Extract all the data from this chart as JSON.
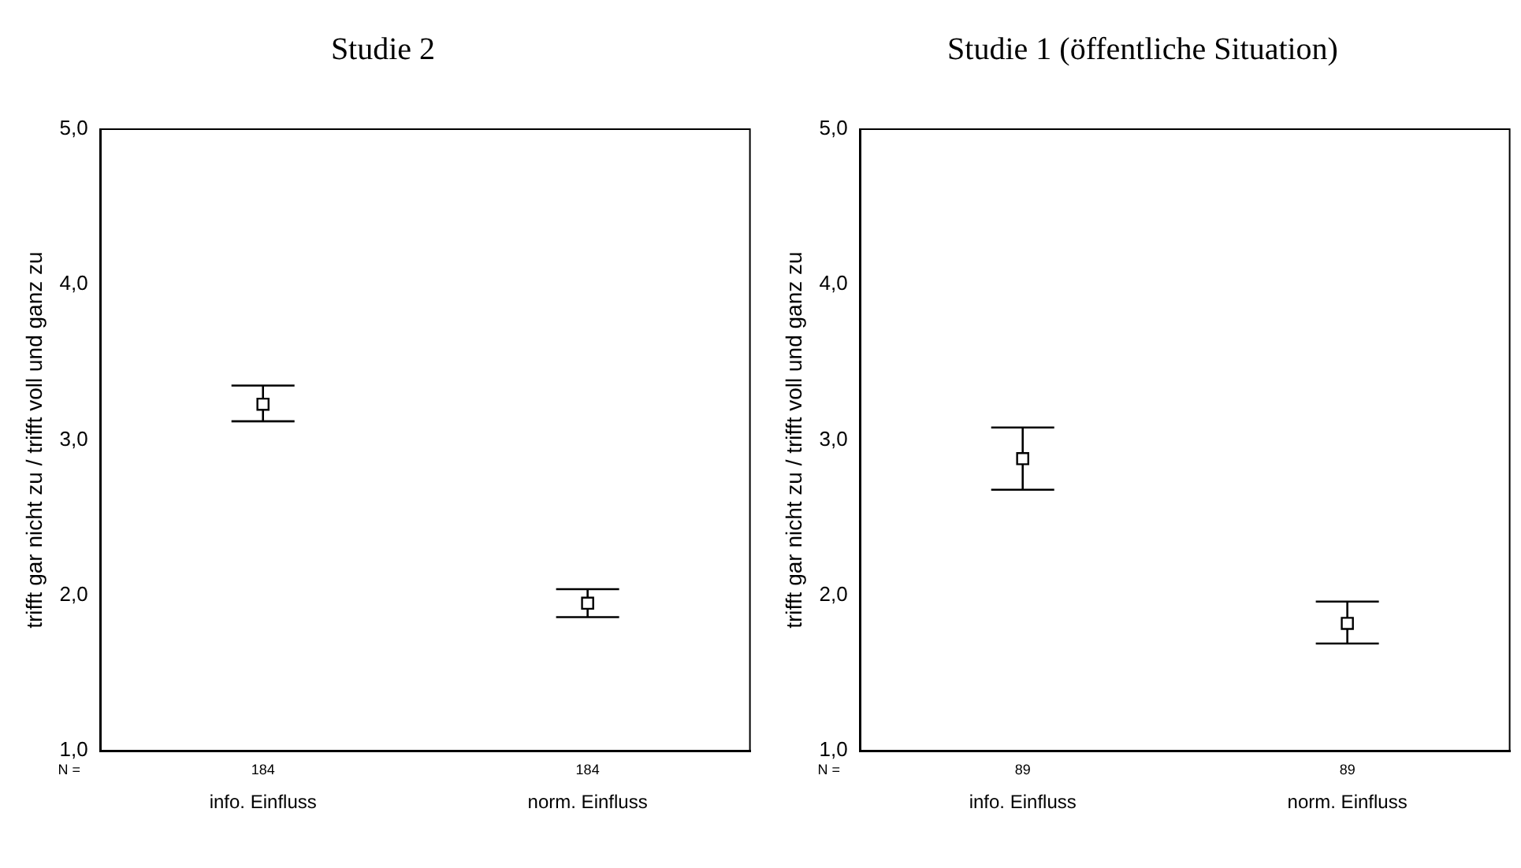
{
  "chart_data": [
    {
      "type": "scatter",
      "title": "Studie 2",
      "ylabel": "trifft gar nicht zu / trifft voll und ganz zu",
      "categories": [
        "info. Einfluss",
        "norm. Einfluss"
      ],
      "series": [
        {
          "color": "#000000",
          "values": [
            3.23,
            1.95
          ],
          "errors": [
            [
              3.12,
              3.35
            ],
            [
              1.86,
              2.04
            ]
          ]
        }
      ],
      "ylim": [
        1,
        5
      ],
      "yticks": [
        {
          "value": 1,
          "label": "1,0"
        },
        {
          "value": 2,
          "label": "2,0"
        },
        {
          "value": 3,
          "label": "3,0"
        },
        {
          "value": 4,
          "label": "4,0"
        },
        {
          "value": 5,
          "label": "5,0"
        }
      ],
      "grid": false,
      "marker": "square",
      "annotations": [
        "N =",
        "184",
        "184"
      ]
    },
    {
      "type": "scatter",
      "title": "Studie 1 (öffentliche Situation)",
      "ylabel": "trifft gar nicht zu / trifft voll und ganz zu",
      "categories": [
        "info. Einfluss",
        "norm. Einfluss"
      ],
      "series": [
        {
          "color": "#000000",
          "values": [
            2.88,
            1.82
          ],
          "errors": [
            [
              2.68,
              3.08
            ],
            [
              1.69,
              1.96
            ]
          ]
        }
      ],
      "ylim": [
        1,
        5
      ],
      "yticks": [
        {
          "value": 1,
          "label": "1,0"
        },
        {
          "value": 2,
          "label": "2,0"
        },
        {
          "value": 3,
          "label": "3,0"
        },
        {
          "value": 4,
          "label": "4,0"
        },
        {
          "value": 5,
          "label": "5,0"
        }
      ],
      "grid": false,
      "marker": "square",
      "annotations": [
        "N =",
        "89",
        "89"
      ]
    }
  ]
}
